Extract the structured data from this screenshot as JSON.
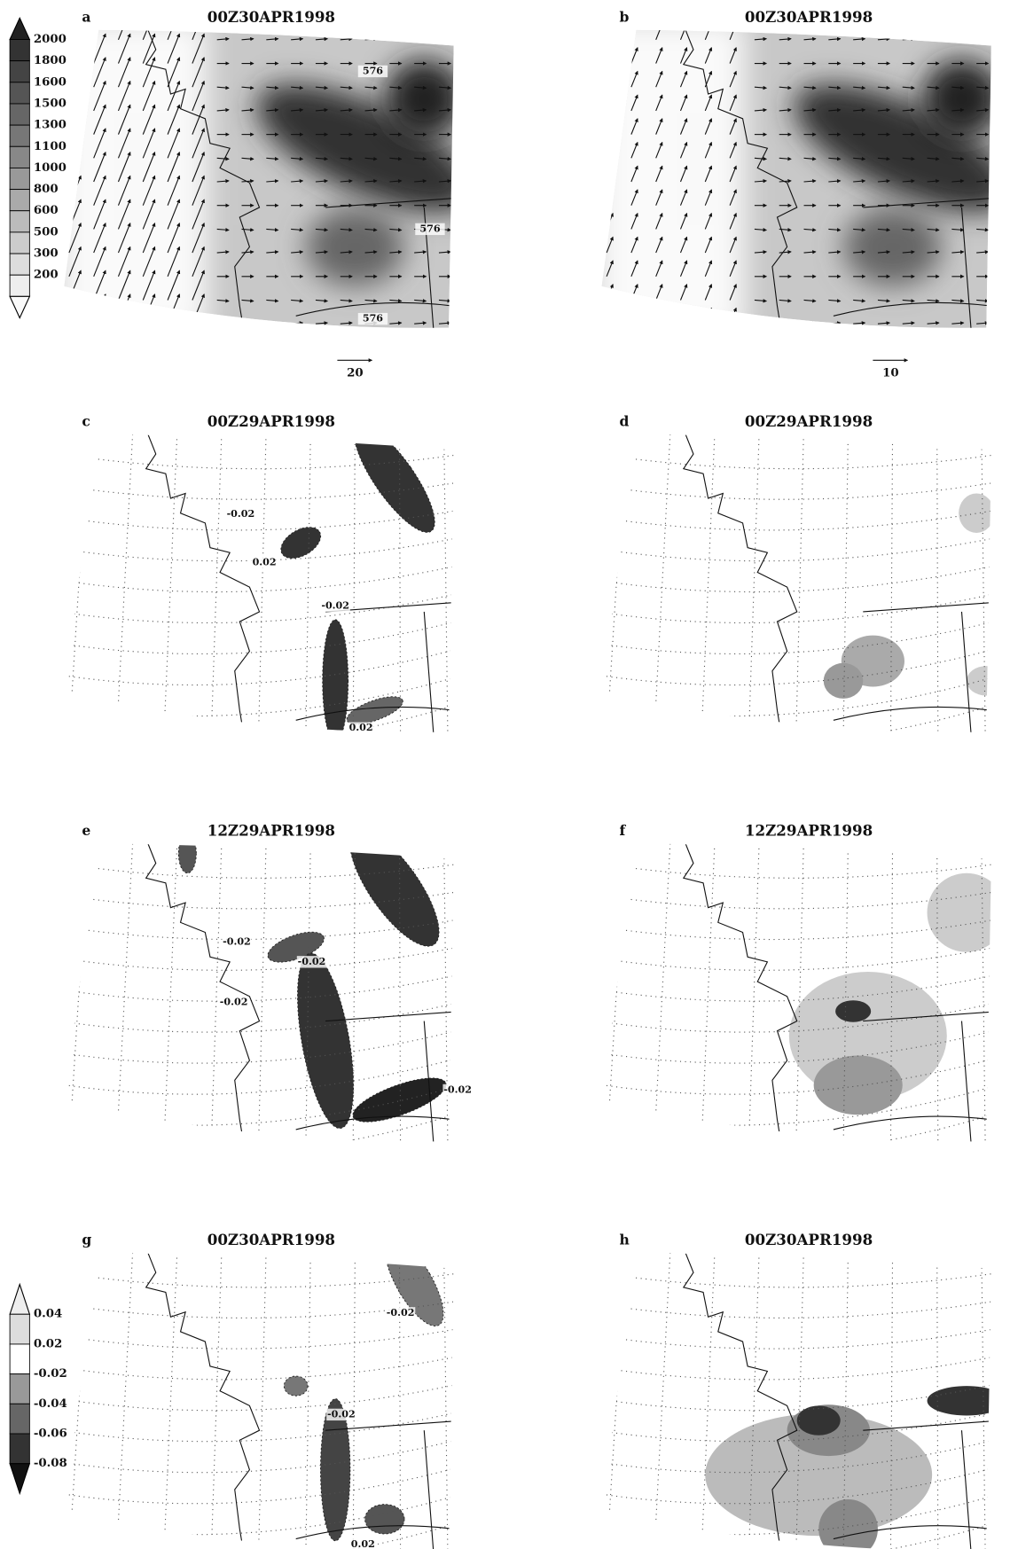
{
  "colorbars": [
    {
      "labels": [
        "2000",
        "1800",
        "1600",
        "1500",
        "1300",
        "1100",
        "1000",
        "800",
        "600",
        "500",
        "300",
        "200"
      ]
    },
    {
      "labels": [
        "0.04",
        "0.02",
        "-0.02",
        "-0.04",
        "-0.06",
        "-0.08"
      ]
    }
  ],
  "panels": [
    {
      "letter": "a",
      "title": "00Z30APR1998",
      "contour_labels": [
        "576",
        "576",
        "576"
      ],
      "vector_ref": "20"
    },
    {
      "letter": "b",
      "title": "00Z30APR1998",
      "vector_ref": "10"
    },
    {
      "letter": "c",
      "title": "00Z29APR1998",
      "contour_labels": [
        "-0.02",
        "0.02",
        "-0.02",
        "0.02"
      ]
    },
    {
      "letter": "d",
      "title": "00Z29APR1998"
    },
    {
      "letter": "e",
      "title": "12Z29APR1998",
      "contour_labels": [
        "-0.02",
        "-0.02",
        "-0.02",
        "-0.02"
      ]
    },
    {
      "letter": "f",
      "title": "12Z29APR1998"
    },
    {
      "letter": "g",
      "title": "00Z30APR1998",
      "contour_labels": [
        "-0.02",
        "-0.02",
        "0.02"
      ]
    },
    {
      "letter": "h",
      "title": "00Z30APR1998"
    }
  ]
}
